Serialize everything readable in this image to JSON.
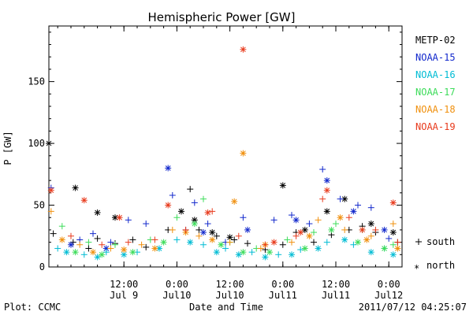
{
  "chart_data": {
    "type": "scatter",
    "title": "Hemispheric Power [GW]",
    "ylabel": "P [GW]",
    "xlabel": "Date and Time",
    "footer_left": "Plot: CCMC",
    "footer_right": "2011/07/12 04:25:07",
    "ylim": [
      0,
      195
    ],
    "xlim": [
      "2011-07-08 19:00",
      "2011-07-12 03:00"
    ],
    "y_ticks": [
      0,
      50,
      100,
      150
    ],
    "x_ticks": [
      {
        "time": "2011-07-09 12:00",
        "line1": "12:00",
        "line2": "Jul 9"
      },
      {
        "time": "2011-07-10 00:00",
        "line1": "0:00",
        "line2": "Jul10"
      },
      {
        "time": "2011-07-10 12:00",
        "line1": "12:00",
        "line2": "Jul10"
      },
      {
        "time": "2011-07-11 00:00",
        "line1": "0:00",
        "line2": "Jul11"
      },
      {
        "time": "2011-07-11 12:00",
        "line1": "12:00",
        "line2": "Jul11"
      },
      {
        "time": "2011-07-12 00:00",
        "line1": "0:00",
        "line2": "Jul12"
      }
    ],
    "grid": false,
    "legend_position": "right",
    "marker_legend": [
      {
        "symbol": "+",
        "label": "south"
      },
      {
        "symbol": "*",
        "label": "north"
      }
    ],
    "series": [
      {
        "name": "METP-02",
        "color": "#000000",
        "south": [
          [
            "2011-07-08 20:00",
            27
          ],
          [
            "2011-07-09 00:30",
            20
          ],
          [
            "2011-07-09 04:00",
            15
          ],
          [
            "2011-07-09 06:00",
            23
          ],
          [
            "2011-07-09 10:00",
            19
          ],
          [
            "2011-07-09 14:00",
            22
          ],
          [
            "2011-07-09 17:00",
            16
          ],
          [
            "2011-07-09 22:00",
            30
          ],
          [
            "2011-07-10 03:00",
            63
          ],
          [
            "2011-07-10 05:00",
            30
          ],
          [
            "2011-07-10 09:00",
            25
          ],
          [
            "2011-07-10 13:00",
            22
          ],
          [
            "2011-07-10 16:00",
            19
          ],
          [
            "2011-07-10 20:00",
            14
          ],
          [
            "2011-07-11 00:00",
            18
          ],
          [
            "2011-07-11 03:00",
            28
          ],
          [
            "2011-07-11 07:00",
            20
          ],
          [
            "2011-07-11 11:00",
            26
          ],
          [
            "2011-07-11 15:00",
            30
          ],
          [
            "2011-07-11 18:00",
            33
          ],
          [
            "2011-07-11 21:00",
            28
          ],
          [
            "2011-07-12 02:00",
            20
          ]
        ],
        "north": [
          [
            "2011-07-08 19:00",
            100
          ],
          [
            "2011-07-09 01:00",
            64
          ],
          [
            "2011-07-09 06:00",
            44
          ],
          [
            "2011-07-09 10:00",
            40
          ],
          [
            "2011-07-10 01:00",
            45
          ],
          [
            "2011-07-10 04:00",
            38
          ],
          [
            "2011-07-10 08:00",
            28
          ],
          [
            "2011-07-10 12:00",
            24
          ],
          [
            "2011-07-11 00:00",
            66
          ],
          [
            "2011-07-11 05:00",
            30
          ],
          [
            "2011-07-11 10:00",
            45
          ],
          [
            "2011-07-11 14:00",
            55
          ],
          [
            "2011-07-11 20:00",
            35
          ],
          [
            "2011-07-12 01:00",
            28
          ]
        ]
      },
      {
        "name": "NOAA-15",
        "color": "#1228cc",
        "south": [
          [
            "2011-07-08 19:30",
            64
          ],
          [
            "2011-07-09 02:00",
            22
          ],
          [
            "2011-07-09 05:00",
            27
          ],
          [
            "2011-07-09 09:00",
            20
          ],
          [
            "2011-07-09 13:00",
            38
          ],
          [
            "2011-07-09 17:00",
            35
          ],
          [
            "2011-07-09 23:00",
            58
          ],
          [
            "2011-07-10 02:00",
            30
          ],
          [
            "2011-07-10 04:00",
            52
          ],
          [
            "2011-07-10 07:00",
            35
          ],
          [
            "2011-07-10 11:00",
            20
          ],
          [
            "2011-07-10 15:00",
            40
          ],
          [
            "2011-07-10 22:00",
            38
          ],
          [
            "2011-07-11 02:00",
            42
          ],
          [
            "2011-07-11 06:00",
            35
          ],
          [
            "2011-07-11 09:00",
            79
          ],
          [
            "2011-07-11 13:00",
            55
          ],
          [
            "2011-07-11 17:00",
            50
          ],
          [
            "2011-07-11 20:00",
            48
          ],
          [
            "2011-07-12 00:00",
            23
          ]
        ],
        "north": [
          [
            "2011-07-09 00:00",
            18
          ],
          [
            "2011-07-09 08:00",
            15
          ],
          [
            "2011-07-09 22:00",
            80
          ],
          [
            "2011-07-10 06:00",
            28
          ],
          [
            "2011-07-10 16:00",
            30
          ],
          [
            "2011-07-11 03:00",
            38
          ],
          [
            "2011-07-11 10:00",
            70
          ],
          [
            "2011-07-11 16:00",
            45
          ],
          [
            "2011-07-11 23:00",
            30
          ]
        ]
      },
      {
        "name": "NOAA-16",
        "color": "#00bcd4",
        "south": [
          [
            "2011-07-08 21:00",
            15
          ],
          [
            "2011-07-09 03:00",
            10
          ],
          [
            "2011-07-09 08:00",
            12
          ],
          [
            "2011-07-09 15:00",
            12
          ],
          [
            "2011-07-10 00:00",
            22
          ],
          [
            "2011-07-10 06:00",
            18
          ],
          [
            "2011-07-10 11:00",
            15
          ],
          [
            "2011-07-10 17:00",
            12
          ],
          [
            "2011-07-10 23:00",
            10
          ],
          [
            "2011-07-11 04:00",
            14
          ],
          [
            "2011-07-11 10:00",
            20
          ],
          [
            "2011-07-11 16:00",
            18
          ],
          [
            "2011-07-11 23:00",
            15
          ]
        ],
        "north": [
          [
            "2011-07-08 23:00",
            12
          ],
          [
            "2011-07-09 06:00",
            8
          ],
          [
            "2011-07-09 12:00",
            10
          ],
          [
            "2011-07-09 20:00",
            15
          ],
          [
            "2011-07-10 03:00",
            20
          ],
          [
            "2011-07-10 09:00",
            12
          ],
          [
            "2011-07-10 14:00",
            10
          ],
          [
            "2011-07-10 20:00",
            8
          ],
          [
            "2011-07-11 02:00",
            10
          ],
          [
            "2011-07-11 08:00",
            15
          ],
          [
            "2011-07-11 14:00",
            22
          ],
          [
            "2011-07-11 20:00",
            12
          ],
          [
            "2011-07-12 01:00",
            10
          ]
        ]
      },
      {
        "name": "NOAA-17",
        "color": "#3ddc5a",
        "south": [
          [
            "2011-07-08 22:00",
            33
          ],
          [
            "2011-07-09 04:00",
            20
          ],
          [
            "2011-07-09 10:00",
            18
          ],
          [
            "2011-07-09 18:00",
            22
          ],
          [
            "2011-07-10 00:00",
            40
          ],
          [
            "2011-07-10 06:00",
            55
          ],
          [
            "2011-07-10 12:00",
            20
          ],
          [
            "2011-07-10 18:00",
            15
          ],
          [
            "2011-07-11 01:00",
            22
          ],
          [
            "2011-07-11 07:00",
            28
          ],
          [
            "2011-07-11 12:00",
            35
          ],
          [
            "2011-07-11 18:00",
            30
          ],
          [
            "2011-07-12 01:00",
            18
          ]
        ],
        "north": [
          [
            "2011-07-09 01:00",
            12
          ],
          [
            "2011-07-09 07:00",
            10
          ],
          [
            "2011-07-09 14:00",
            12
          ],
          [
            "2011-07-09 21:00",
            20
          ],
          [
            "2011-07-10 04:00",
            35
          ],
          [
            "2011-07-10 10:00",
            18
          ],
          [
            "2011-07-10 15:00",
            12
          ],
          [
            "2011-07-10 21:00",
            12
          ],
          [
            "2011-07-11 05:00",
            15
          ],
          [
            "2011-07-11 11:00",
            30
          ],
          [
            "2011-07-11 17:00",
            20
          ],
          [
            "2011-07-11 23:00",
            15
          ]
        ]
      },
      {
        "name": "NOAA-18",
        "color": "#f0900e",
        "south": [
          [
            "2011-07-08 19:30",
            45
          ],
          [
            "2011-07-09 02:00",
            18
          ],
          [
            "2011-07-09 09:00",
            15
          ],
          [
            "2011-07-09 16:00",
            18
          ],
          [
            "2011-07-09 23:00",
            30
          ],
          [
            "2011-07-10 05:00",
            25
          ],
          [
            "2011-07-10 12:00",
            20
          ],
          [
            "2011-07-10 19:00",
            15
          ],
          [
            "2011-07-11 02:00",
            20
          ],
          [
            "2011-07-11 08:00",
            38
          ],
          [
            "2011-07-11 14:00",
            30
          ],
          [
            "2011-07-11 20:00",
            25
          ],
          [
            "2011-07-12 01:00",
            35
          ]
        ],
        "north": [
          [
            "2011-07-08 22:00",
            22
          ],
          [
            "2011-07-09 05:00",
            12
          ],
          [
            "2011-07-09 12:00",
            14
          ],
          [
            "2011-07-09 19:00",
            15
          ],
          [
            "2011-07-10 02:00",
            28
          ],
          [
            "2011-07-10 08:00",
            22
          ],
          [
            "2011-07-10 13:00",
            53
          ],
          [
            "2011-07-10 15:00",
            92
          ],
          [
            "2011-07-10 20:00",
            18
          ],
          [
            "2011-07-11 06:00",
            25
          ],
          [
            "2011-07-11 13:00",
            40
          ],
          [
            "2011-07-11 19:00",
            22
          ],
          [
            "2011-07-12 02:00",
            15
          ]
        ]
      },
      {
        "name": "NOAA-19",
        "color": "#e83a1c",
        "south": [
          [
            "2011-07-09 00:00",
            25
          ],
          [
            "2011-07-09 07:00",
            18
          ],
          [
            "2011-07-09 13:00",
            20
          ],
          [
            "2011-07-09 19:00",
            22
          ],
          [
            "2011-07-10 02:00",
            30
          ],
          [
            "2011-07-10 08:00",
            45
          ],
          [
            "2011-07-10 14:00",
            25
          ],
          [
            "2011-07-10 20:00",
            18
          ],
          [
            "2011-07-11 03:00",
            25
          ],
          [
            "2011-07-11 09:00",
            55
          ],
          [
            "2011-07-11 15:00",
            40
          ],
          [
            "2011-07-11 21:00",
            30
          ],
          [
            "2011-07-12 02:00",
            20
          ]
        ],
        "north": [
          [
            "2011-07-08 19:30",
            62
          ],
          [
            "2011-07-09 03:00",
            54
          ],
          [
            "2011-07-09 11:00",
            40
          ],
          [
            "2011-07-09 22:00",
            50
          ],
          [
            "2011-07-10 07:00",
            44
          ],
          [
            "2011-07-10 15:00",
            176
          ],
          [
            "2011-07-10 22:00",
            20
          ],
          [
            "2011-07-11 04:00",
            28
          ],
          [
            "2011-07-11 10:00",
            62
          ],
          [
            "2011-07-11 18:00",
            30
          ],
          [
            "2011-07-12 01:00",
            52
          ]
        ]
      }
    ]
  }
}
